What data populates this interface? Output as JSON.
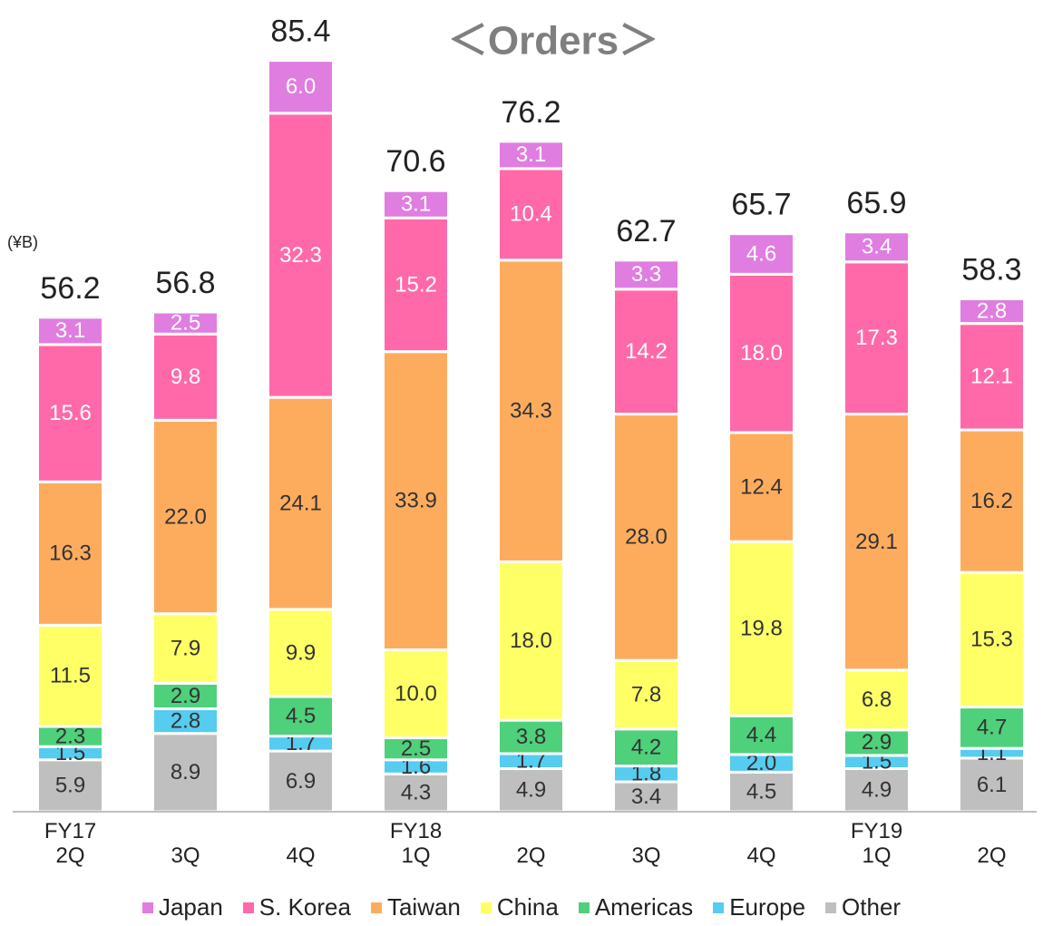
{
  "chart_data": {
    "type": "stacked_bar",
    "title": "＜Orders＞",
    "unit": "(¥B)",
    "categories": [
      "FY17\n2Q",
      "3Q",
      "4Q",
      "FY18\n1Q",
      "2Q",
      "3Q",
      "4Q",
      "FY19\n1Q",
      "2Q"
    ],
    "ylim": [
      0,
      90
    ],
    "series": [
      {
        "name": "Other",
        "color": "#bfbfbf",
        "values": [
          5.9,
          8.9,
          6.9,
          4.3,
          4.9,
          3.4,
          4.5,
          4.9,
          6.1
        ],
        "value_labels": [
          "5.9",
          "8.9",
          "6.9",
          "4.3",
          "4.9",
          "3.4",
          "4.5",
          "4.9",
          "6.1"
        ]
      },
      {
        "name": "Europe",
        "color": "#55ccf0",
        "values": [
          1.5,
          2.8,
          1.7,
          1.6,
          1.7,
          1.8,
          2.0,
          1.5,
          1.1
        ],
        "value_labels": [
          "1.5",
          "2.8",
          "1.7",
          "1.6",
          "1.7",
          "1.8",
          "2.0",
          "1.5",
          "1.1"
        ]
      },
      {
        "name": "Americas",
        "color": "#4fd07a",
        "values": [
          2.3,
          2.9,
          4.5,
          2.5,
          3.8,
          4.2,
          4.4,
          2.9,
          4.7
        ],
        "value_labels": [
          "2.3",
          "2.9",
          "4.5",
          "2.5",
          "3.8",
          "4.2",
          "4.4",
          "2.9",
          "4.7"
        ]
      },
      {
        "name": "China",
        "color": "#ffff66",
        "values": [
          11.5,
          7.9,
          9.9,
          10.0,
          18.0,
          7.8,
          19.8,
          6.8,
          15.3
        ],
        "value_labels": [
          "11.5",
          "7.9",
          "9.9",
          "10.0",
          "18.0",
          "7.8",
          "19.8",
          "6.8",
          "15.3"
        ]
      },
      {
        "name": "Taiwan",
        "color": "#fdac5e",
        "values": [
          16.3,
          22.0,
          24.1,
          33.9,
          34.3,
          28.0,
          12.4,
          29.1,
          16.2
        ],
        "value_labels": [
          "16.3",
          "22.0",
          "24.1",
          "33.9",
          "34.3",
          "28.0",
          "12.4",
          "29.1",
          "16.2"
        ]
      },
      {
        "name": "S. Korea",
        "color": "#ff69aa",
        "values": [
          15.6,
          9.8,
          32.3,
          15.2,
          10.4,
          14.2,
          18.0,
          17.3,
          12.1
        ],
        "value_labels": [
          "15.6",
          "9.8",
          "32.3",
          "15.2",
          "10.4",
          "14.2",
          "18.0",
          "17.3",
          "12.1"
        ]
      },
      {
        "name": "Japan",
        "color": "#e07de0",
        "values": [
          3.1,
          2.5,
          6.0,
          3.1,
          3.1,
          3.3,
          4.6,
          3.4,
          2.8
        ],
        "value_labels": [
          "3.1",
          "2.5",
          "6.0",
          "3.1",
          "3.1",
          "3.3",
          "4.6",
          "3.4",
          "2.8"
        ]
      }
    ],
    "totals": [
      56.2,
      56.8,
      85.4,
      70.6,
      76.2,
      62.7,
      65.7,
      65.9,
      58.3
    ]
  }
}
